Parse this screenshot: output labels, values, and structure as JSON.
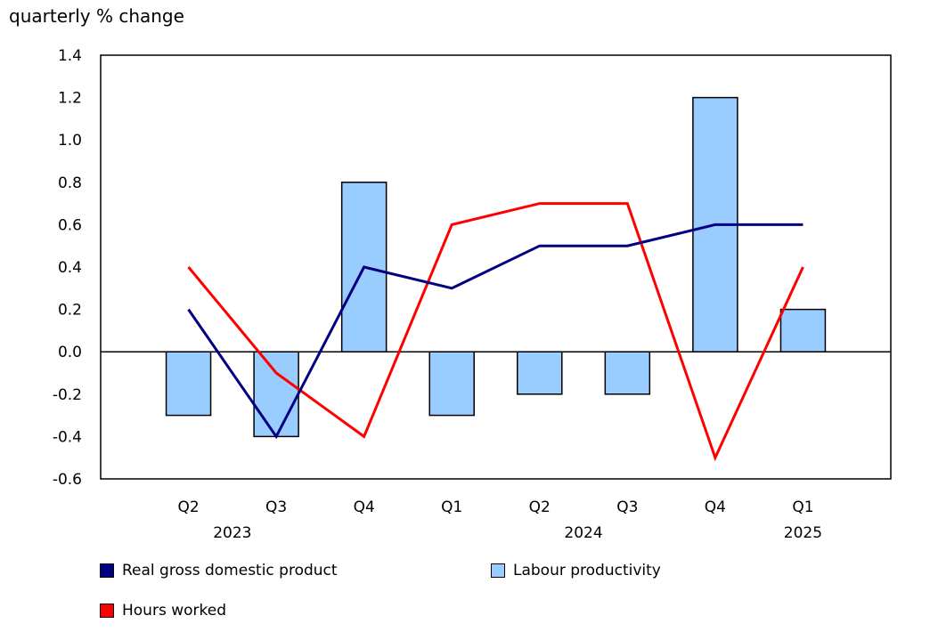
{
  "chart_data": {
    "type": "bar",
    "ylabel": "quarterly % change",
    "ylim": [
      -0.6,
      1.4
    ],
    "yticks": [
      "1.4",
      "1.2",
      "1.0",
      "0.8",
      "0.6",
      "0.4",
      "0.2",
      "0.0",
      "-0.2",
      "-0.4",
      "-0.6"
    ],
    "categories": [
      "Q2",
      "Q3",
      "Q4",
      "Q1",
      "Q2",
      "Q3",
      "Q4",
      "Q1"
    ],
    "year_labels": [
      {
        "label": "2023",
        "between": [
          0,
          1
        ]
      },
      {
        "label": "2024",
        "between": [
          4,
          5
        ]
      },
      {
        "label": "2025",
        "between": [
          7,
          7
        ]
      }
    ],
    "grid": false,
    "legend_position": "bottom",
    "series": [
      {
        "name": "Real gross domestic product",
        "type": "line",
        "color": "#000080",
        "values": [
          0.2,
          -0.4,
          0.4,
          0.3,
          0.5,
          0.5,
          0.6,
          0.6
        ]
      },
      {
        "name": "Labour productivity",
        "type": "bar",
        "color": "#99ccff",
        "values": [
          -0.3,
          -0.4,
          0.8,
          -0.3,
          -0.2,
          -0.2,
          1.2,
          0.2
        ]
      },
      {
        "name": "Hours worked",
        "type": "line",
        "color": "#ff0000",
        "values": [
          0.4,
          -0.1,
          -0.4,
          0.6,
          0.7,
          0.7,
          -0.5,
          0.4
        ]
      }
    ]
  }
}
